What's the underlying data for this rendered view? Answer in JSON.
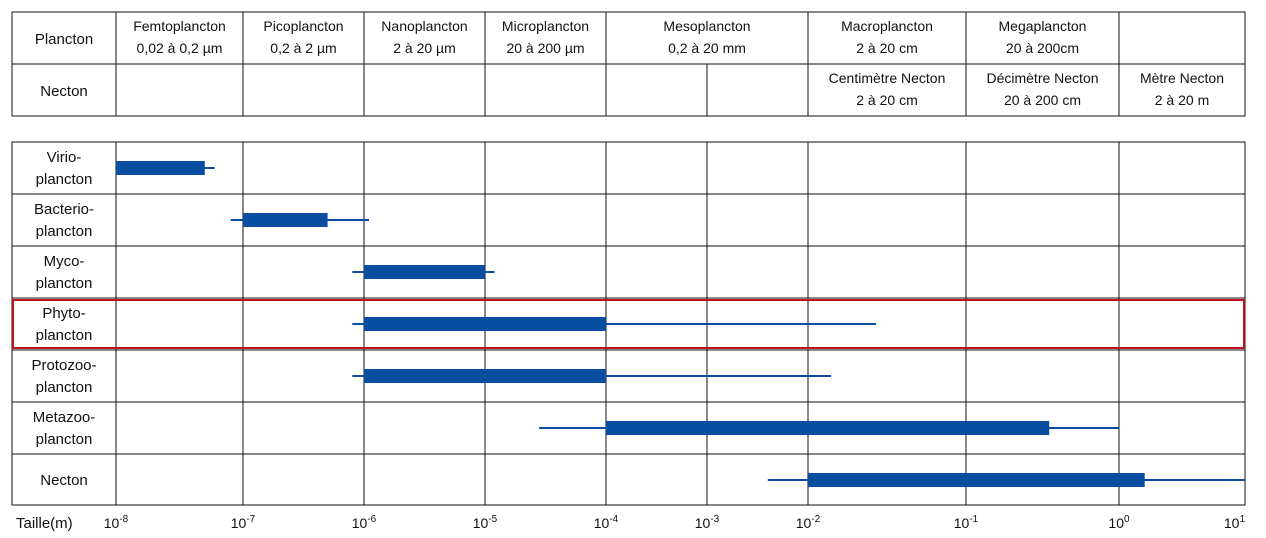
{
  "chart_data": {
    "type": "bar",
    "subtype": "range",
    "xlabel": "Taille(m)",
    "x_scale": "log",
    "xlim": [
      1e-08,
      10
    ],
    "x_ticks": [
      {
        "value": 1e-08,
        "base": "10",
        "exp": "-8"
      },
      {
        "value": 1e-07,
        "base": "10",
        "exp": "-7"
      },
      {
        "value": 1e-06,
        "base": "10",
        "exp": "-6"
      },
      {
        "value": 1e-05,
        "base": "10",
        "exp": "-5"
      },
      {
        "value": 0.0001,
        "base": "10",
        "exp": "-4"
      },
      {
        "value": 0.001,
        "base": "10",
        "exp": "-3"
      },
      {
        "value": 0.01,
        "base": "10",
        "exp": "-2"
      },
      {
        "value": 0.1,
        "base": "10",
        "exp": "-1"
      },
      {
        "value": 1,
        "base": "10",
        "exp": "0"
      },
      {
        "value": 10,
        "base": "10",
        "exp": "1"
      }
    ],
    "header_rows": [
      {
        "label": "Plancton",
        "cells": [
          {
            "from": 1e-08,
            "to": 1e-07,
            "lines": [
              "Femtoplancton",
              "0,02 à 0,2 µm"
            ]
          },
          {
            "from": 1e-07,
            "to": 1e-06,
            "lines": [
              "Picoplancton",
              "0,2 à 2 µm"
            ]
          },
          {
            "from": 1e-06,
            "to": 1e-05,
            "lines": [
              "Nanoplancton",
              "2 à 20 µm"
            ]
          },
          {
            "from": 1e-05,
            "to": 0.0001,
            "lines": [
              "Microplancton",
              "20 à 200 µm"
            ]
          },
          {
            "from": 0.0001,
            "to": 0.01,
            "lines": [
              "Mesoplancton",
              "0,2 à 20 mm"
            ]
          },
          {
            "from": 0.01,
            "to": 0.1,
            "lines": [
              "Macroplancton",
              "2 à 20 cm"
            ]
          },
          {
            "from": 0.1,
            "to": 1,
            "lines": [
              "Megaplancton",
              "20 à 200cm"
            ]
          },
          {
            "from": 1,
            "to": 10,
            "lines": []
          }
        ]
      },
      {
        "label": "Necton",
        "cells": [
          {
            "from": 1e-08,
            "to": 1e-07,
            "lines": []
          },
          {
            "from": 1e-07,
            "to": 1e-06,
            "lines": []
          },
          {
            "from": 1e-06,
            "to": 1e-05,
            "lines": []
          },
          {
            "from": 1e-05,
            "to": 0.0001,
            "lines": []
          },
          {
            "from": 0.0001,
            "to": 0.001,
            "lines": []
          },
          {
            "from": 0.001,
            "to": 0.01,
            "lines": []
          },
          {
            "from": 0.01,
            "to": 0.1,
            "lines": [
              "Centimètre Necton",
              "2 à 20 cm"
            ]
          },
          {
            "from": 0.1,
            "to": 1,
            "lines": [
              "Décimètre Necton",
              "20 à 200 cm"
            ]
          },
          {
            "from": 1,
            "to": 10,
            "lines": [
              "Mètre Necton",
              "2 à 20 m"
            ]
          }
        ]
      }
    ],
    "series": [
      {
        "lines": [
          "Virio-",
          "plancton"
        ],
        "bar": [
          1e-08,
          5e-08
        ],
        "range": [
          1e-08,
          6e-08
        ]
      },
      {
        "lines": [
          "Bacterio-",
          "plancton"
        ],
        "bar": [
          1e-07,
          5e-07
        ],
        "range": [
          8e-08,
          1.1e-06
        ]
      },
      {
        "lines": [
          "Myco-",
          "plancton"
        ],
        "bar": [
          1e-06,
          1e-05
        ],
        "range": [
          8e-07,
          1.2e-05
        ]
      },
      {
        "lines": [
          "Phyto-",
          "plancton"
        ],
        "bar": [
          1e-06,
          0.0001
        ],
        "range": [
          8e-07,
          0.027
        ],
        "highlighted": true
      },
      {
        "lines": [
          "Protozoo-",
          "plancton"
        ],
        "bar": [
          1e-06,
          0.0001
        ],
        "range": [
          8e-07,
          0.014
        ]
      },
      {
        "lines": [
          "Metazoo-",
          "plancton"
        ],
        "bar": [
          0.0001,
          0.35
        ],
        "range": [
          2.8e-05,
          1
        ]
      },
      {
        "lines": [
          "Necton"
        ],
        "bar": [
          0.01,
          1.6
        ],
        "range": [
          0.004,
          10
        ]
      }
    ],
    "colors": {
      "bar": "#0a4ea2",
      "highlight": "#c0141c",
      "grid": "#111111"
    }
  }
}
